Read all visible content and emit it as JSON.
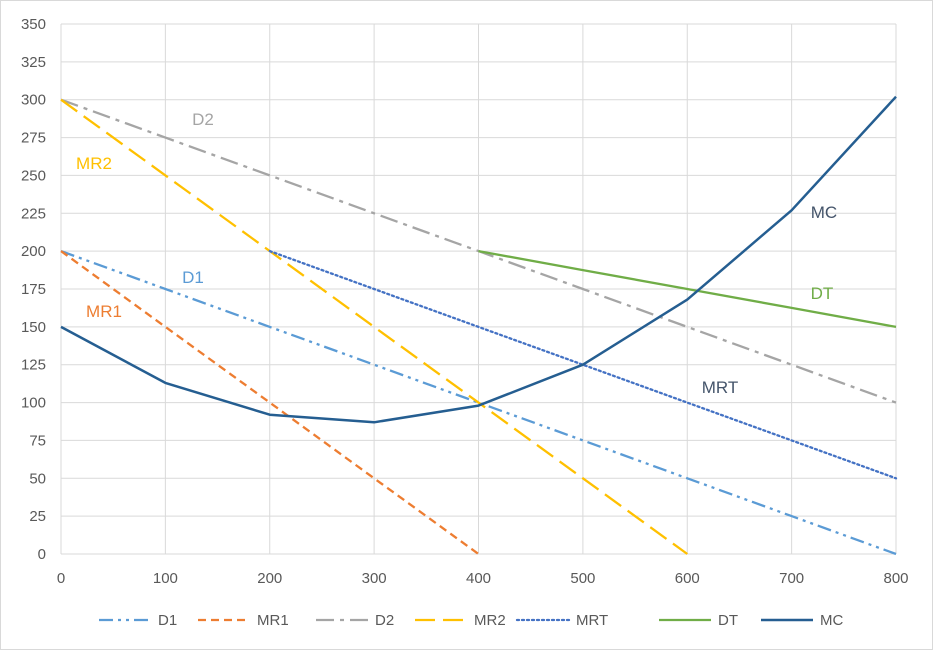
{
  "chart_data": {
    "type": "line",
    "title": "",
    "xlabel": "",
    "ylabel": "",
    "xlim": [
      0,
      800
    ],
    "ylim": [
      0,
      350
    ],
    "x_ticks": [
      "0",
      "100",
      "200",
      "300",
      "400",
      "500",
      "600",
      "700",
      "800"
    ],
    "y_ticks": [
      "0",
      "25",
      "50",
      "75",
      "100",
      "125",
      "150",
      "175",
      "200",
      "225",
      "250",
      "275",
      "300",
      "325",
      "350"
    ],
    "grid": true,
    "legend_position": "bottom",
    "series": [
      {
        "name": "D1",
        "color": "#5B9BD5",
        "dash": "dash-dot-dot",
        "points": [
          [
            0,
            200
          ],
          [
            100,
            175
          ],
          [
            200,
            150
          ],
          [
            300,
            125
          ],
          [
            400,
            100
          ],
          [
            500,
            75
          ],
          [
            600,
            50
          ],
          [
            700,
            25
          ],
          [
            800,
            0
          ]
        ]
      },
      {
        "name": "MR1",
        "color": "#ED7D31",
        "dash": "dash",
        "points": [
          [
            0,
            200
          ],
          [
            100,
            150
          ],
          [
            200,
            100
          ],
          [
            300,
            50
          ],
          [
            400,
            0
          ]
        ]
      },
      {
        "name": "D2",
        "color": "#A5A5A5",
        "dash": "long-dash-dot",
        "points": [
          [
            0,
            300
          ],
          [
            100,
            275
          ],
          [
            200,
            250
          ],
          [
            300,
            225
          ],
          [
            400,
            200
          ],
          [
            500,
            175
          ],
          [
            600,
            150
          ],
          [
            700,
            125
          ],
          [
            800,
            100
          ]
        ]
      },
      {
        "name": "MR2",
        "color": "#FFC000",
        "dash": "long-dash",
        "points": [
          [
            0,
            300
          ],
          [
            100,
            250
          ],
          [
            200,
            200
          ],
          [
            300,
            150
          ],
          [
            400,
            100
          ],
          [
            500,
            50
          ],
          [
            600,
            0
          ]
        ]
      },
      {
        "name": "MRT",
        "color": "#4472C4",
        "dash": "dot",
        "points": [
          [
            200,
            200
          ],
          [
            300,
            175
          ],
          [
            400,
            150
          ],
          [
            500,
            125
          ],
          [
            600,
            100
          ],
          [
            700,
            75
          ],
          [
            800,
            50
          ]
        ]
      },
      {
        "name": "DT",
        "color": "#70AD47",
        "dash": "solid",
        "points": [
          [
            400,
            200
          ],
          [
            500,
            187.5
          ],
          [
            600,
            175
          ],
          [
            700,
            162.5
          ],
          [
            800,
            150
          ]
        ]
      },
      {
        "name": "MC",
        "color": "#255E91",
        "dash": "solid",
        "points": [
          [
            0,
            150
          ],
          [
            100,
            113
          ],
          [
            200,
            92
          ],
          [
            300,
            87
          ],
          [
            400,
            98
          ],
          [
            500,
            125
          ],
          [
            600,
            168
          ],
          [
            700,
            227
          ],
          [
            800,
            302
          ]
        ]
      }
    ],
    "annotations": [
      {
        "text": "D2",
        "color": "#A5A5A5"
      },
      {
        "text": "MR2",
        "color": "#FFC000"
      },
      {
        "text": "D1",
        "color": "#5B9BD5"
      },
      {
        "text": "MR1",
        "color": "#ED7D31"
      },
      {
        "text": "MC",
        "color": "#44546A"
      },
      {
        "text": "DT",
        "color": "#70AD47"
      },
      {
        "text": "MRT",
        "color": "#44546A"
      }
    ]
  }
}
